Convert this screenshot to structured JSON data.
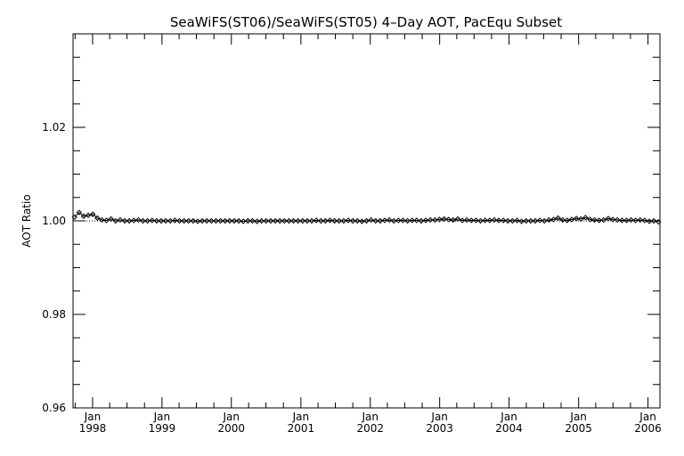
{
  "chart_data": {
    "type": "line",
    "title": "SeaWiFS(ST06)/SeaWiFS(ST05) 4–Day AOT, PacEqu Subset",
    "xlabel": "",
    "ylabel": "AOT Ratio",
    "ylim": [
      0.96,
      1.04
    ],
    "xlim": [
      "1997-09-20",
      "2006-03-05"
    ],
    "yticks": [
      {
        "value": 0.96,
        "label": "0.96"
      },
      {
        "value": 0.98,
        "label": "0.98"
      },
      {
        "value": 1.0,
        "label": "1.00"
      },
      {
        "value": 1.02,
        "label": "1.02"
      }
    ],
    "xticks": [
      {
        "date": "1998-01-01",
        "month": "Jan",
        "year": "1998"
      },
      {
        "date": "1999-01-01",
        "month": "Jan",
        "year": "1999"
      },
      {
        "date": "2000-01-01",
        "month": "Jan",
        "year": "2000"
      },
      {
        "date": "2001-01-01",
        "month": "Jan",
        "year": "2001"
      },
      {
        "date": "2002-01-01",
        "month": "Jan",
        "year": "2002"
      },
      {
        "date": "2003-01-01",
        "month": "Jan",
        "year": "2003"
      },
      {
        "date": "2004-01-01",
        "month": "Jan",
        "year": "2004"
      },
      {
        "date": "2005-01-01",
        "month": "Jan",
        "year": "2005"
      },
      {
        "date": "2006-01-01",
        "month": "Jan",
        "year": "2006"
      }
    ],
    "reference_line": 1.0,
    "grid": false,
    "series": [
      {
        "marker": "diamond",
        "x": [
          "1997-09-28",
          "1997-10-22",
          "1997-11-15",
          "1997-12-09",
          "1998-01-02",
          "1998-01-26",
          "1998-02-19",
          "1998-03-15",
          "1998-04-08",
          "1998-05-02",
          "1998-05-26",
          "1998-06-19",
          "1998-07-13",
          "1998-08-06",
          "1998-08-30",
          "1998-09-23",
          "1998-10-17",
          "1998-11-10",
          "1998-12-04",
          "1998-12-28",
          "1999-01-21",
          "1999-02-14",
          "1999-03-10",
          "1999-04-03",
          "1999-04-27",
          "1999-05-21",
          "1999-06-14",
          "1999-07-08",
          "1999-08-01",
          "1999-08-25",
          "1999-09-18",
          "1999-10-12",
          "1999-11-05",
          "1999-11-29",
          "1999-12-23",
          "2000-01-16",
          "2000-02-09",
          "2000-03-04",
          "2000-03-28",
          "2000-04-21",
          "2000-05-15",
          "2000-06-08",
          "2000-07-02",
          "2000-07-26",
          "2000-08-19",
          "2000-09-12",
          "2000-10-06",
          "2000-10-30",
          "2000-11-23",
          "2000-12-17",
          "2001-01-10",
          "2001-02-03",
          "2001-02-27",
          "2001-03-23",
          "2001-04-16",
          "2001-05-10",
          "2001-06-03",
          "2001-06-27",
          "2001-07-21",
          "2001-08-14",
          "2001-09-07",
          "2001-10-01",
          "2001-10-25",
          "2001-11-18",
          "2001-12-12",
          "2002-01-05",
          "2002-01-29",
          "2002-02-22",
          "2002-03-18",
          "2002-04-11",
          "2002-05-05",
          "2002-05-29",
          "2002-06-22",
          "2002-07-16",
          "2002-08-09",
          "2002-09-02",
          "2002-09-26",
          "2002-10-20",
          "2002-11-13",
          "2002-12-07",
          "2002-12-31",
          "2003-01-24",
          "2003-02-17",
          "2003-03-13",
          "2003-04-06",
          "2003-04-30",
          "2003-05-24",
          "2003-06-17",
          "2003-07-11",
          "2003-08-04",
          "2003-08-28",
          "2003-09-21",
          "2003-10-15",
          "2003-11-08",
          "2003-12-02",
          "2003-12-26",
          "2004-01-19",
          "2004-02-12",
          "2004-03-07",
          "2004-03-31",
          "2004-04-24",
          "2004-05-18",
          "2004-06-11",
          "2004-07-05",
          "2004-07-29",
          "2004-08-22",
          "2004-09-15",
          "2004-10-09",
          "2004-11-02",
          "2004-11-26",
          "2004-12-20",
          "2005-01-13",
          "2005-02-06",
          "2005-03-02",
          "2005-03-26",
          "2005-04-19",
          "2005-05-13",
          "2005-06-06",
          "2005-06-30",
          "2005-07-24",
          "2005-08-17",
          "2005-09-10",
          "2005-10-04",
          "2005-10-28",
          "2005-11-21",
          "2005-12-15",
          "2006-01-08",
          "2006-02-01",
          "2006-02-25"
        ],
        "y": [
          1.0008,
          1.0018,
          1.001,
          1.0012,
          1.0014,
          1.0006,
          1.0002,
          1.0001,
          1.0004,
          1.0,
          1.0002,
          1.0,
          1.0,
          1.0001,
          1.0002,
          1.0,
          1.0,
          1.0001,
          1.0,
          1.0,
          1.0,
          1.0,
          1.0001,
          1.0,
          1.0,
          1.0,
          1.0,
          0.9999,
          1.0,
          1.0,
          1.0,
          1.0,
          1.0,
          1.0,
          1.0,
          1.0,
          1.0,
          0.9999,
          1.0,
          1.0,
          0.9999,
          1.0,
          1.0,
          1.0,
          1.0,
          1.0,
          1.0,
          1.0,
          1.0,
          1.0,
          1.0,
          1.0,
          1.0,
          1.0001,
          1.0,
          1.0,
          1.0001,
          1.0,
          1.0,
          1.0,
          1.0001,
          1.0,
          1.0,
          0.9999,
          1.0,
          1.0002,
          1.0,
          1.0,
          1.0001,
          1.0002,
          1.0,
          1.0001,
          1.0001,
          1.0,
          1.0001,
          1.0001,
          1.0,
          1.0001,
          1.0002,
          1.0002,
          1.0003,
          1.0004,
          1.0003,
          1.0002,
          1.0004,
          1.0001,
          1.0002,
          1.0001,
          1.0001,
          1.0,
          1.0001,
          1.0001,
          1.0002,
          1.0001,
          1.0001,
          1.0,
          1.0,
          1.0001,
          0.9999,
          1.0,
          1.0,
          1.0,
          1.0001,
          1.0,
          1.0002,
          1.0003,
          1.0006,
          1.0002,
          1.0001,
          1.0003,
          1.0005,
          1.0004,
          1.0007,
          1.0003,
          1.0002,
          1.0001,
          1.0002,
          1.0005,
          1.0003,
          1.0002,
          1.0001,
          1.0001,
          1.0002,
          1.0001,
          1.0002,
          1.0001,
          0.9999,
          1.0,
          0.9998
        ]
      }
    ]
  }
}
